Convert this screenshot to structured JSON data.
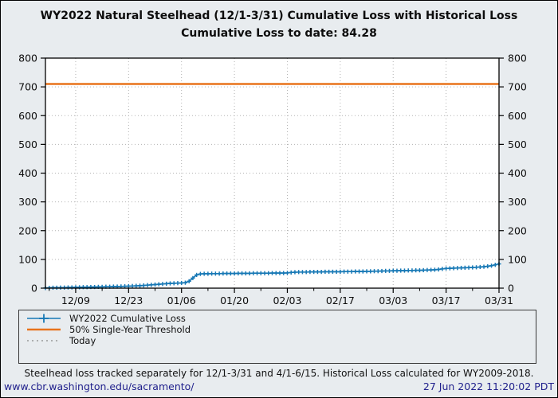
{
  "window": {
    "background_color": "#e8ecef",
    "border_color": "#000000",
    "plot_background": "#ffffff"
  },
  "title": {
    "line1": "WY2022 Natural Steelhead (12/1-3/31) Cumulative Loss with Historical Loss",
    "line2": "Cumulative Loss to date: 84.28",
    "loss_to_date": 84.28
  },
  "chart_data": {
    "type": "line",
    "title": "WY2022 Natural Steelhead (12/1-3/31) Cumulative Loss with Historical Loss",
    "subtitle": "Cumulative Loss to date: 84.28",
    "grid": "dotted",
    "axes_mirrored": true,
    "ylim": [
      0,
      800
    ],
    "y_ticks": [
      0,
      100,
      200,
      300,
      400,
      500,
      600,
      700,
      800
    ],
    "x_start_date": "12/01",
    "x_end_date": "03/31",
    "x_cadence": "daily",
    "x_index_max": 120,
    "x_tick_labels": [
      "12/09",
      "12/23",
      "01/06",
      "01/20",
      "02/03",
      "02/17",
      "03/03",
      "03/17",
      "03/31"
    ],
    "x_tick_indices": [
      8,
      22,
      36,
      50,
      64,
      78,
      92,
      106,
      120
    ],
    "x_minor_tick_indices": [
      1,
      15,
      29,
      43,
      57,
      71,
      85,
      99,
      113
    ],
    "legend_position": "bottom-left-box",
    "series": [
      {
        "name": "WY2022 Cumulative Loss",
        "kind": "line-with-plus-markers",
        "color": "#1778b5",
        "values": [
          0.5,
          1.0,
          1.5,
          1.5,
          2.0,
          2.0,
          2.5,
          2.5,
          3.0,
          3.0,
          3.5,
          3.5,
          4.0,
          4.0,
          4.5,
          4.5,
          5.0,
          5.0,
          5.5,
          5.5,
          6.0,
          6.5,
          7.0,
          7.5,
          8.0,
          8.5,
          9.5,
          10.5,
          11.5,
          12.5,
          13.5,
          14.5,
          15.5,
          16.5,
          17.0,
          17.5,
          18.0,
          19.0,
          24.0,
          35.0,
          46.0,
          49.5,
          50.0,
          50.0,
          50.5,
          50.5,
          50.5,
          51.0,
          51.0,
          51.0,
          51.0,
          51.5,
          51.5,
          51.5,
          51.5,
          52.0,
          52.0,
          52.0,
          52.0,
          52.0,
          52.5,
          52.5,
          52.5,
          52.5,
          53.0,
          54.5,
          55.5,
          56.0,
          56.0,
          56.0,
          56.5,
          56.5,
          56.5,
          56.5,
          57.0,
          57.0,
          57.0,
          57.0,
          57.0,
          57.5,
          57.5,
          57.5,
          58.0,
          58.0,
          58.0,
          58.5,
          58.5,
          59.0,
          59.0,
          59.5,
          60.0,
          60.0,
          60.5,
          60.5,
          61.0,
          61.0,
          61.5,
          61.5,
          62.0,
          62.0,
          62.5,
          63.0,
          63.5,
          64.0,
          65.0,
          67.0,
          68.5,
          69.0,
          69.5,
          70.0,
          70.5,
          71.0,
          71.5,
          72.0,
          72.5,
          73.5,
          74.5,
          76.0,
          78.0,
          81.0,
          84.28
        ]
      },
      {
        "name": "50% Single-Year Threshold",
        "kind": "hline",
        "color": "#e8731c",
        "value": 710
      },
      {
        "name": "Today",
        "kind": "vline-dashed",
        "color": "#888888",
        "value": null
      }
    ]
  },
  "footer": {
    "note": "Steelhead loss tracked separately for 12/1-3/31 and 4/1-6/15. Historical Loss calculated for WY2009-2018.",
    "link": "www.cbr.washington.edu/sacramento/",
    "timestamp": "27 Jun 2022 11:20:02 PDT",
    "link_color": "#20208c"
  }
}
